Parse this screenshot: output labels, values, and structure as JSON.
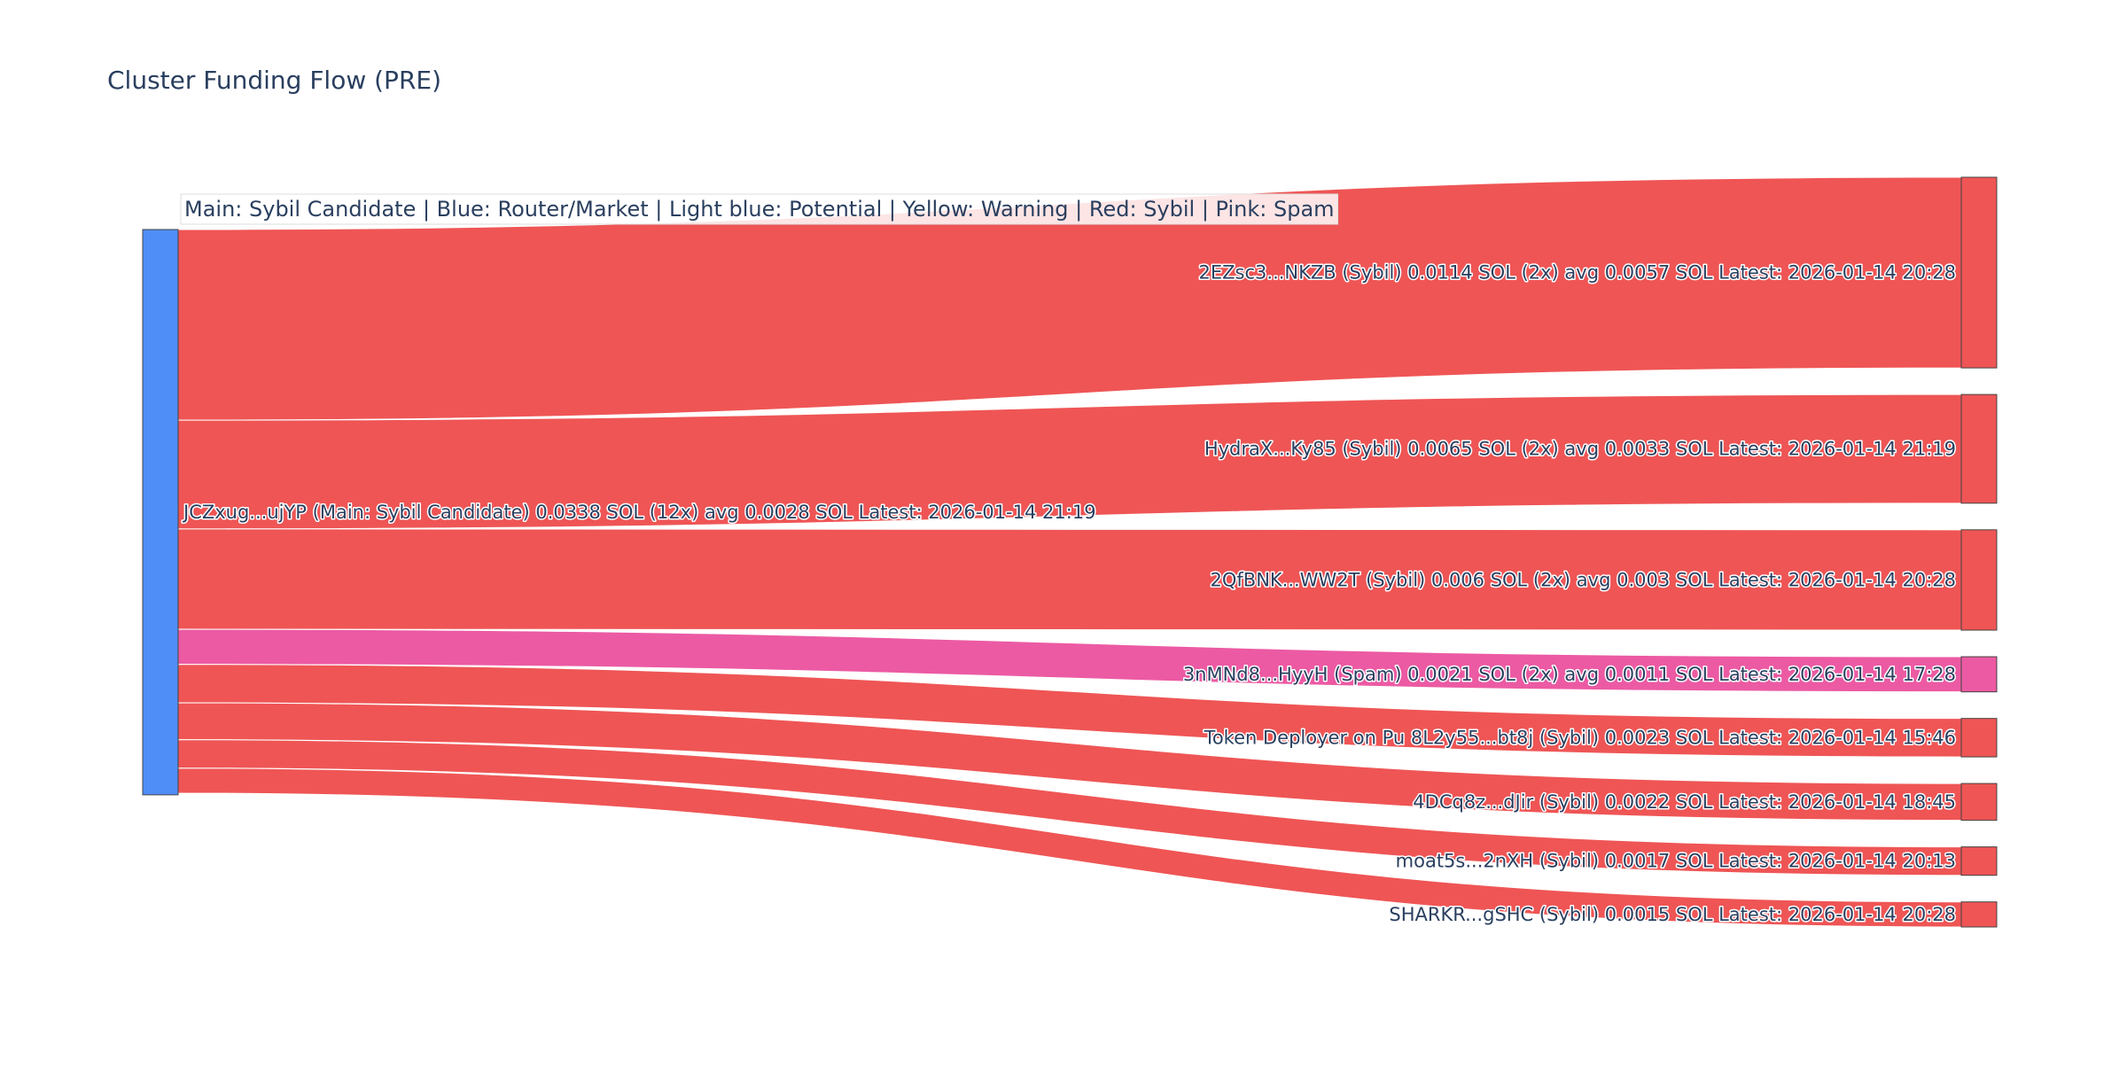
{
  "chart_data": {
    "type": "sankey",
    "title": "Cluster Funding Flow (PRE)",
    "annotation": "Main: Sybil Candidate  |  Blue: Router/Market | Light blue: Potential | Yellow: Warning | Red: Sybil | Pink: Spam",
    "colors": {
      "router": "#4f8ef7",
      "sybil": "#ef5555",
      "spam": "#ec5aa3",
      "text": "#2a3f5f",
      "node_border": "#444444"
    },
    "source": {
      "label": "JCZxug...ujYP (Main: Sybil Candidate) 0.0338 SOL (12x) avg 0.0028 SOL Latest: 2026-01-14 21:19",
      "value": 0.0338,
      "category": "router"
    },
    "targets": [
      {
        "label": "2EZsc3...NKZB (Sybil) 0.0114 SOL (2x) avg 0.0057 SOL Latest: 2026-01-14 20:28",
        "value": 0.0114,
        "category": "sybil"
      },
      {
        "label": "HydraX...Ky85 (Sybil) 0.0065 SOL (2x) avg 0.0033 SOL Latest: 2026-01-14 21:19",
        "value": 0.0065,
        "category": "sybil"
      },
      {
        "label": "2QfBNK...WW2T (Sybil) 0.006 SOL (2x) avg 0.003 SOL Latest: 2026-01-14 20:28",
        "value": 0.006,
        "category": "sybil"
      },
      {
        "label": "3nMNd8...HyyH (Spam) 0.0021 SOL (2x) avg 0.0011 SOL Latest: 2026-01-14 17:28",
        "value": 0.0021,
        "category": "spam"
      },
      {
        "label": "Token Deployer on Pu 8L2y55...bt8j (Sybil) 0.0023 SOL Latest: 2026-01-14 15:46",
        "value": 0.0023,
        "category": "sybil"
      },
      {
        "label": "4DCq8z...dJir (Sybil) 0.0022 SOL Latest: 2026-01-14 18:45",
        "value": 0.0022,
        "category": "sybil"
      },
      {
        "label": "moat5s...2nXH (Sybil) 0.0017 SOL Latest: 2026-01-14 20:13",
        "value": 0.0017,
        "category": "sybil"
      },
      {
        "label": "SHARKR...gSHC (Sybil) 0.0015 SOL Latest: 2026-01-14 20:28",
        "value": 0.0015,
        "category": "sybil"
      }
    ]
  }
}
